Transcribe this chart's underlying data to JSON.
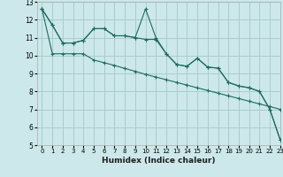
{
  "title": "",
  "xlabel": "Humidex (Indice chaleur)",
  "background_color": "#cce8ea",
  "grid_color": "#aacccc",
  "line_color": "#1e6b5e",
  "xlim": [
    -0.5,
    23
  ],
  "ylim": [
    5,
    13
  ],
  "x_ticks": [
    0,
    1,
    2,
    3,
    4,
    5,
    6,
    7,
    8,
    9,
    10,
    11,
    12,
    13,
    14,
    15,
    16,
    17,
    18,
    19,
    20,
    21,
    22,
    23
  ],
  "y_ticks": [
    5,
    6,
    7,
    8,
    9,
    10,
    11,
    12,
    13
  ],
  "series1_x": [
    0,
    1,
    2,
    3,
    4,
    5,
    6,
    7,
    8,
    9,
    10,
    11,
    12,
    13,
    14,
    15,
    16,
    17,
    18,
    19,
    20,
    21,
    22,
    23
  ],
  "series1_y": [
    12.6,
    11.7,
    10.7,
    10.7,
    10.85,
    11.5,
    11.5,
    11.1,
    11.1,
    11.0,
    12.6,
    11.0,
    10.1,
    9.5,
    9.4,
    9.85,
    9.35,
    9.3,
    8.5,
    8.3,
    8.2,
    8.0,
    7.0,
    5.3
  ],
  "series2_x": [
    0,
    1,
    2,
    3,
    4,
    5,
    6,
    7,
    8,
    9,
    10,
    11,
    12,
    13,
    14,
    15,
    16,
    17,
    18,
    19,
    20,
    21,
    22,
    23
  ],
  "series2_y": [
    12.6,
    11.7,
    10.7,
    10.7,
    10.85,
    11.5,
    11.5,
    11.1,
    11.1,
    11.0,
    10.9,
    10.9,
    10.1,
    9.5,
    9.4,
    9.85,
    9.35,
    9.3,
    8.5,
    8.3,
    8.2,
    8.0,
    7.0,
    5.3
  ],
  "series3_x": [
    0,
    1,
    2,
    3,
    4,
    5,
    6,
    7,
    8,
    9,
    10,
    11,
    12,
    13,
    14,
    15,
    16,
    17,
    18,
    19,
    20,
    21,
    22,
    23
  ],
  "series3_y": [
    12.6,
    10.1,
    10.1,
    10.1,
    10.1,
    9.75,
    9.6,
    9.45,
    9.28,
    9.12,
    8.95,
    8.8,
    8.65,
    8.5,
    8.35,
    8.2,
    8.05,
    7.9,
    7.75,
    7.6,
    7.45,
    7.3,
    7.15,
    7.0
  ]
}
